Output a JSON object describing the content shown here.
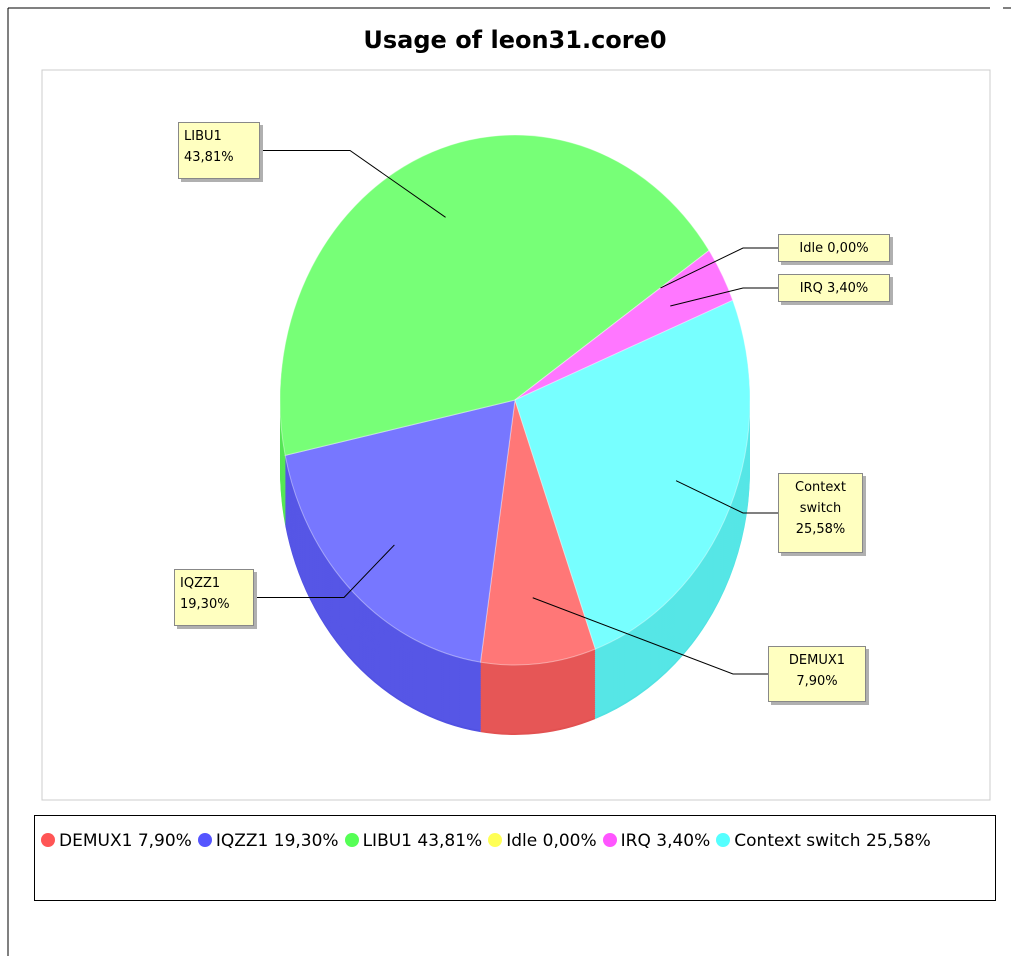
{
  "chart_data": {
    "type": "pie3d",
    "title": "Usage of leon31.core0",
    "categories": [
      "DEMUX1",
      "IQZZ1",
      "LIBU1",
      "Idle",
      "IRQ",
      "Context switch"
    ],
    "values": [
      7.9,
      19.3,
      43.81,
      0,
      3.4,
      25.58
    ],
    "value_labels": [
      "7,90%",
      "19,30%",
      "43,81%",
      "0,00%",
      "3,40%",
      "25,58%"
    ],
    "colors": [
      "#ff5555",
      "#5555ff",
      "#55ff55",
      "#ffff55",
      "#ff55ff",
      "#55ffff"
    ],
    "legend": "bottom"
  }
}
